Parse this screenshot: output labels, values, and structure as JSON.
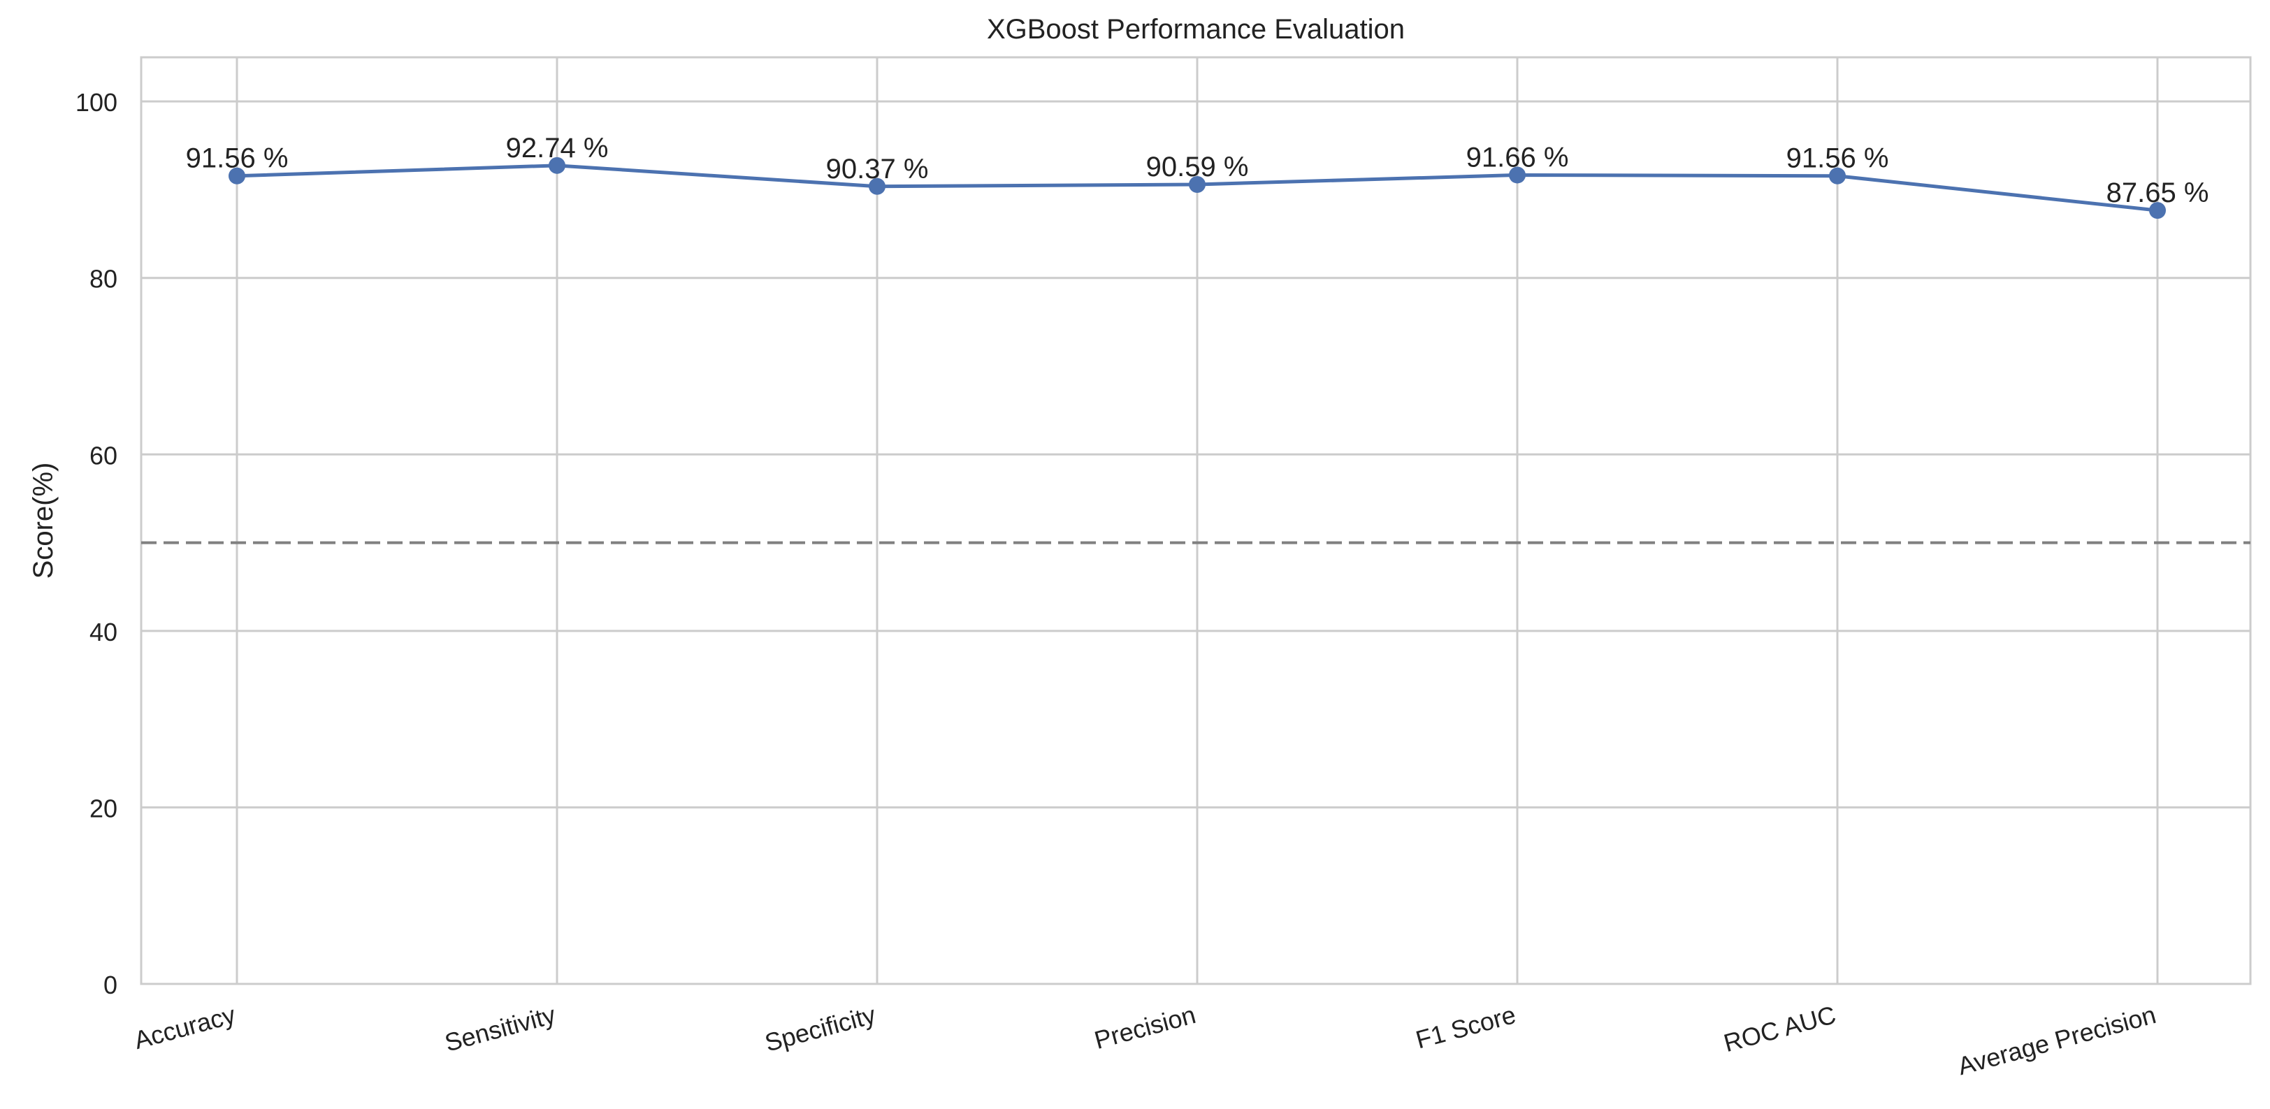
{
  "colors": {
    "line": "#4c72b0",
    "grid": "#cccccc",
    "axes_edge": "#cccccc",
    "reference_line": "#808080",
    "text": "#222222",
    "background": "#ffffff"
  },
  "chart_data": {
    "type": "line",
    "title": "XGBoost Performance Evaluation",
    "xlabel": "",
    "ylabel": "Score(%)",
    "ylim": [
      0,
      105
    ],
    "yticks": [
      0,
      20,
      40,
      60,
      80,
      100
    ],
    "ytick_labels": [
      "0",
      "20",
      "40",
      "60",
      "80",
      "100"
    ],
    "grid": true,
    "legend": "none",
    "x_tick_rotation_deg": 15,
    "categories": [
      "Accuracy",
      "Sensitivity",
      "Specificity",
      "Precision",
      "F1 Score",
      "ROC AUC",
      "Average Precision"
    ],
    "series": [
      {
        "values": [
          91.56,
          92.74,
          90.37,
          90.59,
          91.66,
          91.56,
          87.65
        ],
        "marker": "circle"
      }
    ],
    "data_labels": [
      "91.56 %",
      "92.74 %",
      "90.37 %",
      "90.59 %",
      "91.66 %",
      "91.56 %",
      "87.65 %"
    ],
    "reference_lines": [
      {
        "y": 50,
        "style": "dashed"
      }
    ]
  }
}
